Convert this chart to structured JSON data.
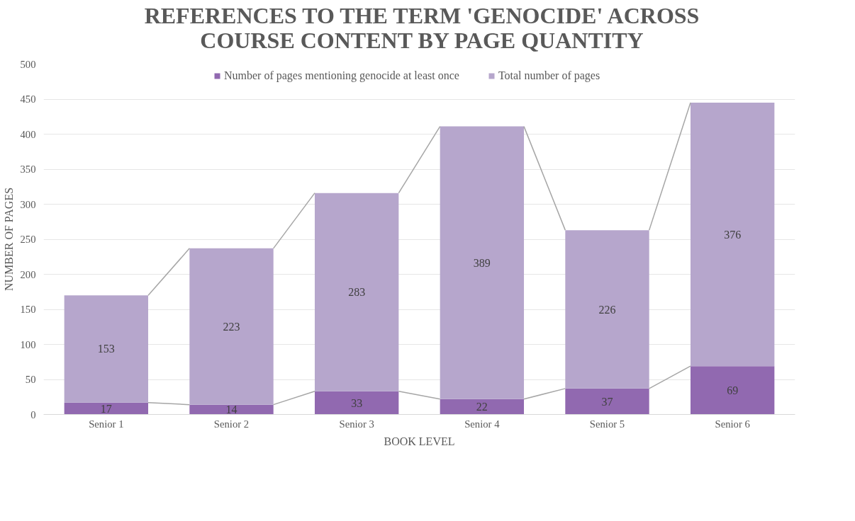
{
  "chart_data": {
    "type": "bar",
    "stacked": true,
    "title": "REFERENCES TO THE TERM 'GENOCIDE' ACROSS COURSE CONTENT BY PAGE QUANTITY",
    "xlabel": "BOOK LEVEL",
    "ylabel": "NUMBER OF PAGES",
    "categories": [
      "Senior 1",
      "Senior 2",
      "Senior 3",
      "Senior 4",
      "Senior 5",
      "Senior 6"
    ],
    "series": [
      {
        "name": "Number of pages mentioning genocide at least once",
        "color": "#9169b0",
        "values": [
          17,
          14,
          33,
          22,
          37,
          69
        ]
      },
      {
        "name": "Total number of pages",
        "color": "#b6a6cc",
        "values": [
          153,
          223,
          283,
          389,
          226,
          376
        ]
      }
    ],
    "ylim": [
      0,
      500
    ],
    "yticks": [
      0,
      50,
      100,
      150,
      200,
      250,
      300,
      350,
      400,
      450,
      500
    ],
    "grid": "y",
    "legend": "top",
    "data_labels": true
  }
}
